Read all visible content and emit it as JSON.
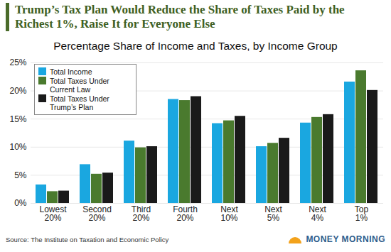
{
  "chart_data": {
    "type": "bar",
    "title": "Trump’s Tax Plan Would Reduce the Share of Taxes Paid by the Richest 1%, Raise It for Everyone Else",
    "subtitle": "Percentage Share of Income and Taxes, by Income Group",
    "source": "Source: The Institute on Taxation and Economic Policy",
    "logo": "MONEY MORNING",
    "categories": [
      "Lowest 20%",
      "Second 20%",
      "Third 20%",
      "Fourth 20%",
      "Next 10%",
      "Next 5%",
      "Next 4%",
      "Top 1%"
    ],
    "series": [
      {
        "name": "Total Income",
        "color": "#1aa7e0",
        "values": [
          3.3,
          6.9,
          11.1,
          18.5,
          14.2,
          10.1,
          14.3,
          21.6
        ]
      },
      {
        "name": "Total Taxes Under Current Law",
        "color": "#4a7a2e",
        "values": [
          2.1,
          5.2,
          9.9,
          18.3,
          14.7,
          10.7,
          15.3,
          23.6
        ]
      },
      {
        "name": "Total Taxes Under Trump’s Plan",
        "color": "#1a1a1a",
        "values": [
          2.2,
          5.4,
          10.1,
          19.0,
          15.5,
          11.6,
          15.8,
          20.1
        ]
      }
    ],
    "ylim": [
      0,
      25
    ],
    "yticks": [
      {
        "value": 0,
        "label": "0%"
      },
      {
        "value": 5,
        "label": "5%"
      },
      {
        "value": 10,
        "label": "10%"
      },
      {
        "value": 15,
        "label": "15%"
      },
      {
        "value": 20,
        "label": "20%"
      },
      {
        "value": 25,
        "label": "25%"
      }
    ],
    "grid": true,
    "legend": "top-left"
  }
}
